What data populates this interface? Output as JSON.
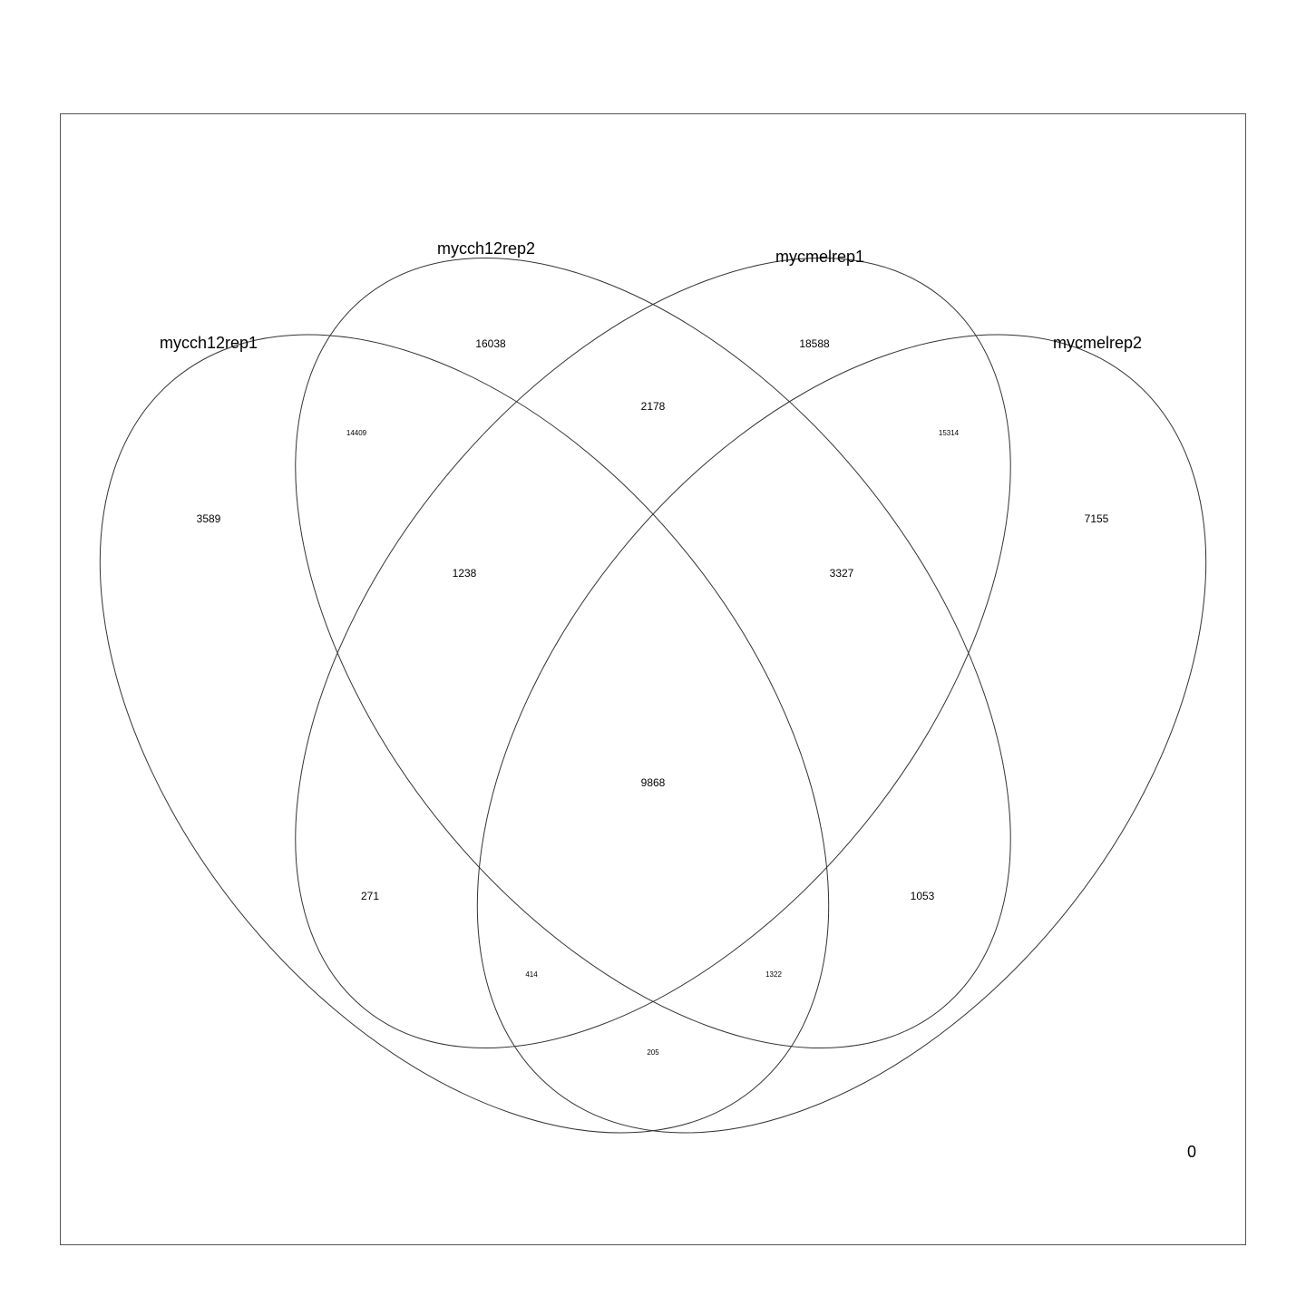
{
  "venn": {
    "sets": [
      {
        "id": "A",
        "name": "mycch12rep1"
      },
      {
        "id": "B",
        "name": "mycch12rep2"
      },
      {
        "id": "C",
        "name": "mycmelrep1"
      },
      {
        "id": "D",
        "name": "mycmelrep2"
      }
    ],
    "regions": {
      "A": "3589",
      "B": "16038",
      "C": "18588",
      "D": "7155",
      "AB": "14409",
      "BC": "2178",
      "CD": "15314",
      "AC": "271",
      "BD": "1053",
      "AD": "205",
      "ABC": "1238",
      "BCD": "3327",
      "ACD": "414",
      "ABD": "1322",
      "ABCD": "9868"
    },
    "outside": "0",
    "stroke_color": "#333333"
  }
}
